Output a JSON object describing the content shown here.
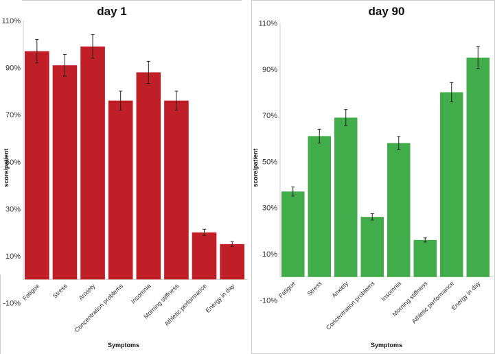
{
  "chart_data": [
    {
      "type": "bar",
      "title": "day 1",
      "xlabel": "Symptoms",
      "ylabel": "score/patient",
      "ylim": [
        -10,
        110
      ],
      "yticks": [
        "-10%",
        "10%",
        "30%",
        "50%",
        "70%",
        "90%",
        "110%"
      ],
      "ytick_values": [
        -10,
        10,
        30,
        50,
        70,
        90,
        110
      ],
      "categories": [
        "Fatigue",
        "Stress",
        "Anxiety",
        "Concentration problems",
        "Insomnia",
        "Morning stiffness",
        "Athletic performance",
        "Energy in day"
      ],
      "values": [
        97,
        91,
        99,
        76,
        88,
        76,
        20,
        15
      ],
      "errors": [
        5,
        4.6,
        5,
        4,
        4.7,
        4,
        1.3,
        1
      ],
      "color": "#c01f27"
    },
    {
      "type": "bar",
      "title": "day 90",
      "xlabel": "Symptoms",
      "ylabel": "score/patient",
      "ylim": [
        -10,
        110
      ],
      "yticks": [
        "-10%",
        "10%",
        "30%",
        "50%",
        "70%",
        "90%",
        "110%"
      ],
      "ytick_values": [
        -10,
        10,
        30,
        50,
        70,
        90,
        110
      ],
      "categories": [
        "Fatigue",
        "Stress",
        "Anxiety",
        "Concentration problems",
        "Insomnia",
        "Morning stiffness",
        "Athletic performance",
        "Energy in day"
      ],
      "values": [
        37,
        61,
        69,
        26,
        58,
        16,
        80,
        95
      ],
      "errors": [
        2,
        3,
        3.5,
        1.4,
        2.8,
        0.9,
        4.2,
        4.8
      ],
      "color": "#41ad4a"
    }
  ]
}
